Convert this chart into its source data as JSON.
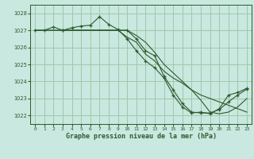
{
  "bg_color": "#c8e8e0",
  "grid_color": "#a0c8a8",
  "line_color": "#2d5a2d",
  "xlabel": "Graphe pression niveau de la mer (hPa)",
  "ylim": [
    1021.5,
    1028.5
  ],
  "xlim": [
    -0.5,
    23.5
  ],
  "yticks": [
    1022,
    1023,
    1024,
    1025,
    1026,
    1027,
    1028
  ],
  "xticks": [
    0,
    1,
    2,
    3,
    4,
    5,
    6,
    7,
    8,
    9,
    10,
    11,
    12,
    13,
    14,
    15,
    16,
    17,
    18,
    19,
    20,
    21,
    22,
    23
  ],
  "series": [
    {
      "x": [
        0,
        1,
        2,
        3,
        4,
        5,
        6,
        7,
        8,
        9,
        10,
        11,
        12,
        13,
        14,
        15,
        16,
        17,
        18,
        19,
        20,
        21,
        22,
        23
      ],
      "y": [
        1027.0,
        1027.0,
        1027.2,
        1027.0,
        1027.15,
        1027.25,
        1027.3,
        1027.8,
        1027.35,
        1027.05,
        1026.5,
        1025.8,
        1025.2,
        1024.8,
        1024.2,
        1023.2,
        1022.5,
        1022.15,
        1022.2,
        1022.1,
        1022.4,
        1023.2,
        1023.35,
        1023.6
      ],
      "marker": true
    },
    {
      "x": [
        0,
        1,
        2,
        3,
        4,
        5,
        6,
        7,
        8,
        9,
        10,
        11,
        12,
        13,
        14,
        15,
        16,
        17,
        18,
        19,
        20,
        21,
        22,
        23
      ],
      "y": [
        1027.0,
        1027.0,
        1027.0,
        1027.0,
        1027.0,
        1027.0,
        1027.0,
        1027.0,
        1027.0,
        1027.0,
        1026.6,
        1026.3,
        1025.6,
        1025.2,
        1024.6,
        1024.2,
        1023.9,
        1023.5,
        1023.2,
        1023.0,
        1022.8,
        1022.6,
        1022.4,
        1022.2
      ],
      "marker": false
    },
    {
      "x": [
        0,
        1,
        2,
        3,
        4,
        5,
        6,
        7,
        8,
        9,
        10,
        11,
        12,
        13,
        14,
        15,
        16,
        17,
        18,
        19,
        20,
        21,
        22,
        23
      ],
      "y": [
        1027.0,
        1027.0,
        1027.0,
        1027.0,
        1027.0,
        1027.0,
        1027.0,
        1027.0,
        1027.0,
        1027.0,
        1027.0,
        1026.7,
        1026.3,
        1025.7,
        1025.0,
        1024.5,
        1024.0,
        1023.5,
        1022.9,
        1022.2,
        1022.1,
        1022.2,
        1022.5,
        1023.0
      ],
      "marker": false
    },
    {
      "x": [
        3,
        10,
        11,
        12,
        13,
        14,
        15,
        16,
        17,
        18,
        19,
        20,
        21,
        22,
        23
      ],
      "y": [
        1027.0,
        1027.0,
        1026.5,
        1025.8,
        1025.5,
        1024.3,
        1023.5,
        1022.7,
        1022.2,
        1022.15,
        1022.15,
        1022.35,
        1022.8,
        1023.2,
        1023.55
      ],
      "marker": true
    }
  ]
}
